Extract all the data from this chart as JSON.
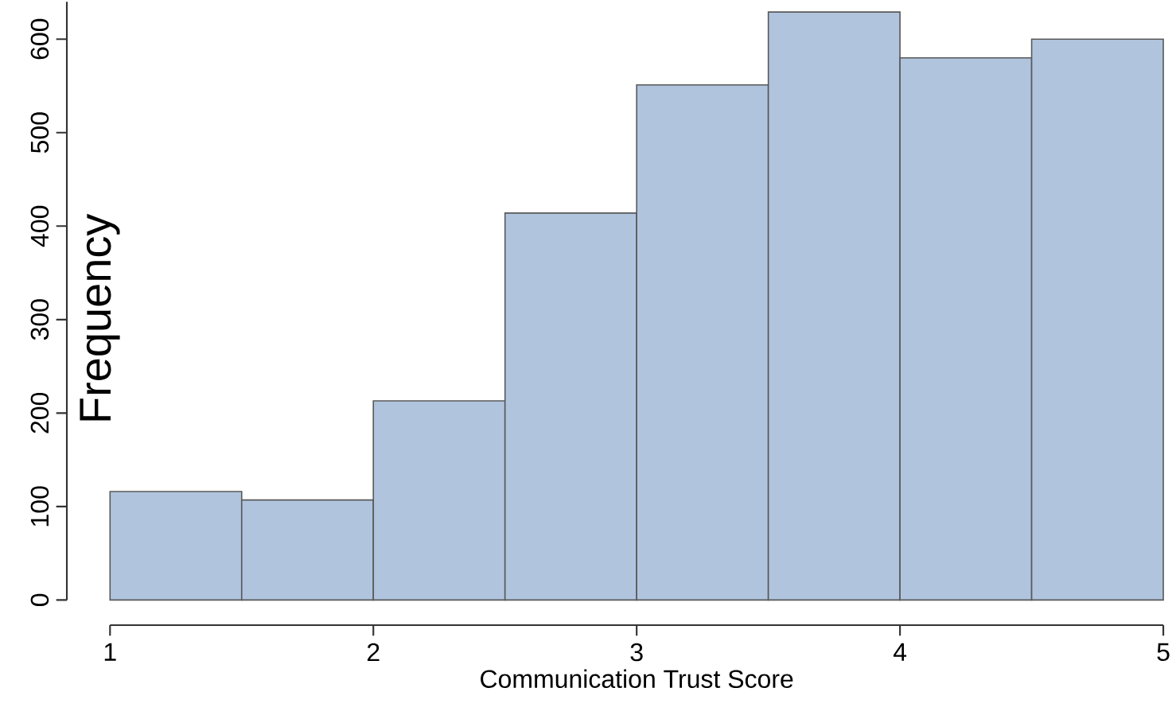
{
  "chart_data": {
    "type": "histogram",
    "xlabel": "Communication Trust Score",
    "ylabel": "Frequency",
    "bins": [
      1,
      1.5,
      2,
      2.5,
      3,
      3.5,
      4,
      4.5,
      5
    ],
    "values": [
      116,
      107,
      213,
      414,
      551,
      629,
      580,
      600
    ],
    "color": "#b0c4de",
    "xlim": [
      1,
      5
    ],
    "xticks": [
      1,
      2,
      3,
      4,
      5
    ],
    "ylim": [
      0,
      640
    ],
    "yticks": [
      0,
      100,
      200,
      300,
      400,
      500,
      600
    ],
    "grid": false
  }
}
